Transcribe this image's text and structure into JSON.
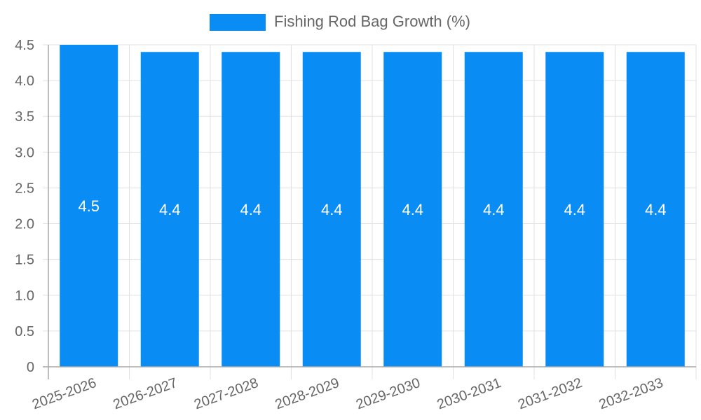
{
  "legend": {
    "label": "Fishing Rod Bag Growth (%)",
    "color": "#0a8cf5"
  },
  "colors": {
    "bar": "#0a8cf5",
    "grid": "#e0e0e0",
    "axis": "#a8a8a8",
    "tick_text": "#666666",
    "bar_label": "#ffffff"
  },
  "chart_data": {
    "type": "bar",
    "title": "",
    "xlabel": "",
    "ylabel": "",
    "categories": [
      "2025-2026",
      "2026-2027",
      "2027-2028",
      "2028-2029",
      "2029-2030",
      "2030-2031",
      "2031-2032",
      "2032-2033"
    ],
    "series": [
      {
        "name": "Fishing Rod Bag Growth (%)",
        "values": [
          4.5,
          4.4,
          4.4,
          4.4,
          4.4,
          4.4,
          4.4,
          4.4
        ]
      }
    ],
    "ylim": [
      0,
      4.5
    ],
    "yticks": [
      0,
      0.5,
      1.0,
      1.5,
      2.0,
      2.5,
      3.0,
      3.5,
      4.0,
      4.5
    ],
    "ytick_labels": [
      "0",
      "0.5",
      "1.0",
      "1.5",
      "2.0",
      "2.5",
      "3.0",
      "3.5",
      "4.0",
      "4.5"
    ],
    "grid": true,
    "legend_position": "top",
    "data_labels": true
  }
}
